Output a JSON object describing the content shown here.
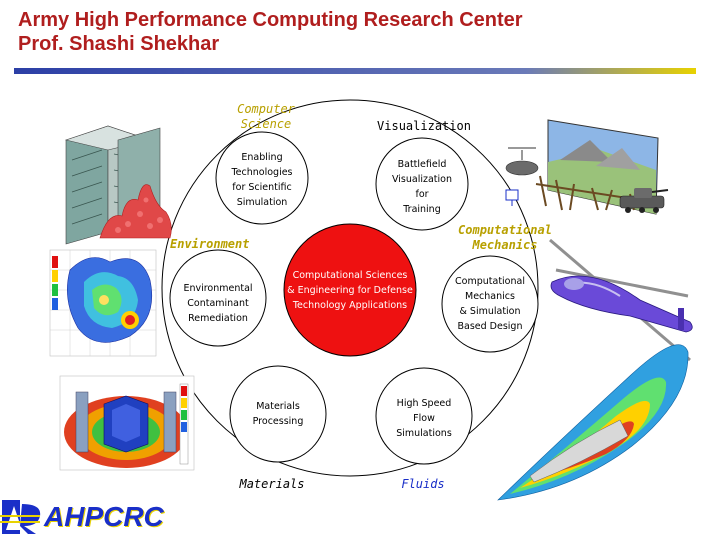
{
  "title": {
    "line1": "Army High Performance Computing Research Center",
    "line2": "Prof. Shashi Shekhar"
  },
  "colors": {
    "title": "#b01e1e",
    "category_label": "#b8a000",
    "fluids_label": "#1a2fc8",
    "hub_fill": "#ee1111",
    "rule_blue": "#2c3fa6",
    "rule_yellow": "#e8d200"
  },
  "hub": {
    "lines": [
      "Computational Sciences",
      "& Engineering for Defense",
      "Technology Applications"
    ]
  },
  "nodes": [
    {
      "id": "enabling",
      "lines": [
        "Enabling",
        "Technologies",
        "for Scientific",
        "Simulation"
      ]
    },
    {
      "id": "battlefield",
      "lines": [
        "Battlefield",
        "Visualization",
        "for",
        "Training"
      ]
    },
    {
      "id": "environmental",
      "lines": [
        "Environmental",
        "Contaminant",
        "Remediation"
      ]
    },
    {
      "id": "comp-mech",
      "lines": [
        "Computational",
        "Mechanics",
        "& Simulation",
        "Based Design"
      ]
    },
    {
      "id": "materials",
      "lines": [
        "Materials",
        "Processing"
      ]
    },
    {
      "id": "flow",
      "lines": [
        "High Speed",
        "Flow",
        "Simulations"
      ]
    }
  ],
  "categories": {
    "computer_science": [
      "Computer",
      "Science"
    ],
    "visualization": "Visualization",
    "environment": "Environment",
    "computational_mechanics": [
      "Computational",
      "Mechanics"
    ],
    "materials": "Materials",
    "fluids": "Fluids"
  },
  "logo": {
    "text": "AHPCRC"
  }
}
